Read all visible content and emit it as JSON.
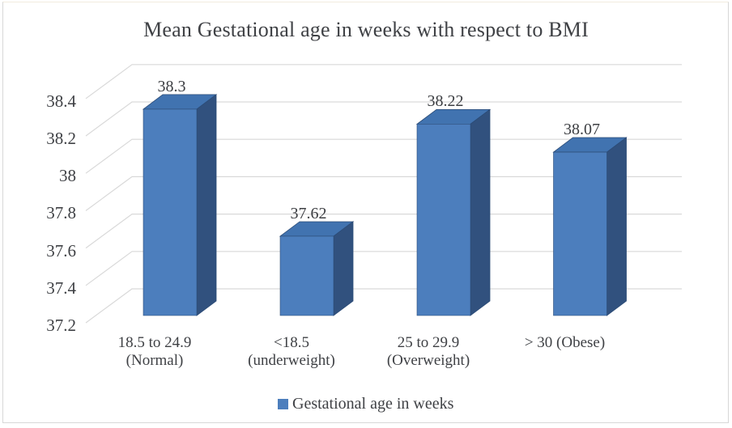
{
  "title": "Mean Gestational age in weeks with respect to BMI",
  "legend": {
    "label": "Gestational age in weeks",
    "swatch_color": "#4C7EBD"
  },
  "chart_data": {
    "type": "bar",
    "projection": "3d",
    "title": "Mean Gestational age in weeks with respect to BMI",
    "categories": [
      [
        "18.5 to 24.9",
        "(Normal)"
      ],
      [
        "<18.5",
        "(underweight)"
      ],
      [
        "25 to 29.9",
        "(Overweight)"
      ],
      [
        "> 30 (Obese)"
      ]
    ],
    "series": [
      {
        "name": "Gestational age in weeks",
        "values": [
          38.3,
          37.62,
          38.22,
          38.07
        ]
      }
    ],
    "values": [
      38.3,
      37.62,
      38.22,
      38.07
    ],
    "data_labels": [
      "38.3",
      "37.62",
      "38.22",
      "38.07"
    ],
    "yticks": [
      "38.4",
      "38.2",
      "38",
      "37.8",
      "37.6",
      "37.4",
      "37.2"
    ],
    "ylim": [
      37.2,
      38.4
    ],
    "ytick_interval": 0.2,
    "xlabel": "",
    "ylabel": "",
    "grid": true,
    "legend_position": "bottom",
    "colors": {
      "bar_front": "#4C7EBD",
      "bar_top": "#4173B0",
      "bar_side": "#31517E",
      "bar_edge": "#2C4C77",
      "gridline": "#D9D9D9",
      "text": "#3F4145"
    }
  }
}
